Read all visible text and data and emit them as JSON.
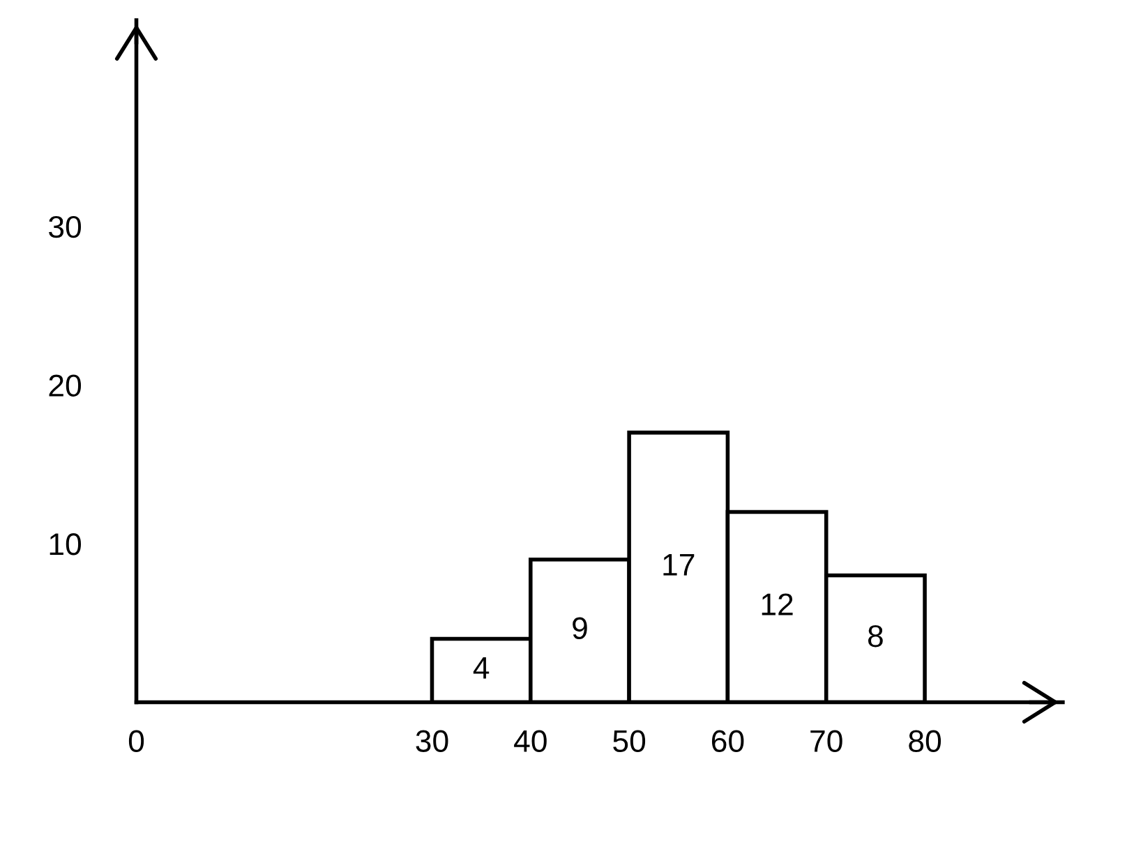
{
  "chart_data": {
    "type": "histogram",
    "bins": [
      30,
      40,
      50,
      60,
      70,
      80
    ],
    "values": [
      4,
      9,
      17,
      12,
      8
    ],
    "color": "#ffffff",
    "data_labels": true,
    "xlim": [
      0,
      94
    ],
    "ylim": [
      0,
      43
    ],
    "xticks": [
      0,
      30,
      40,
      50,
      60,
      70,
      80
    ],
    "yticks": [
      10,
      20,
      30
    ],
    "grid": false
  }
}
